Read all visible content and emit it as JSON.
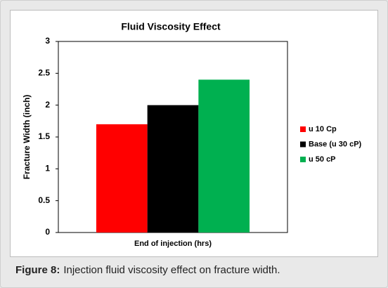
{
  "chart_data": {
    "type": "bar",
    "title": "Fluid Viscosity Effect",
    "y_label": "Fracture Width (inch)",
    "categories": [
      "End of injection (hrs)"
    ],
    "series": [
      {
        "name": "u 10 Cp",
        "color": "#ff0000",
        "values": [
          1.7
        ]
      },
      {
        "name": "Base (u 30 cP)",
        "color": "#000000",
        "values": [
          2.0
        ]
      },
      {
        "name": "u 50 cP",
        "color": "#00b050",
        "values": [
          2.4
        ]
      }
    ],
    "ylim": [
      0,
      3
    ],
    "yticks": [
      0,
      0.5,
      1,
      1.5,
      2,
      2.5,
      3
    ],
    "grid": false,
    "legend": "right"
  },
  "caption": {
    "label": "Figure 8:",
    "text": "Injection fluid viscosity effect on fracture width."
  }
}
